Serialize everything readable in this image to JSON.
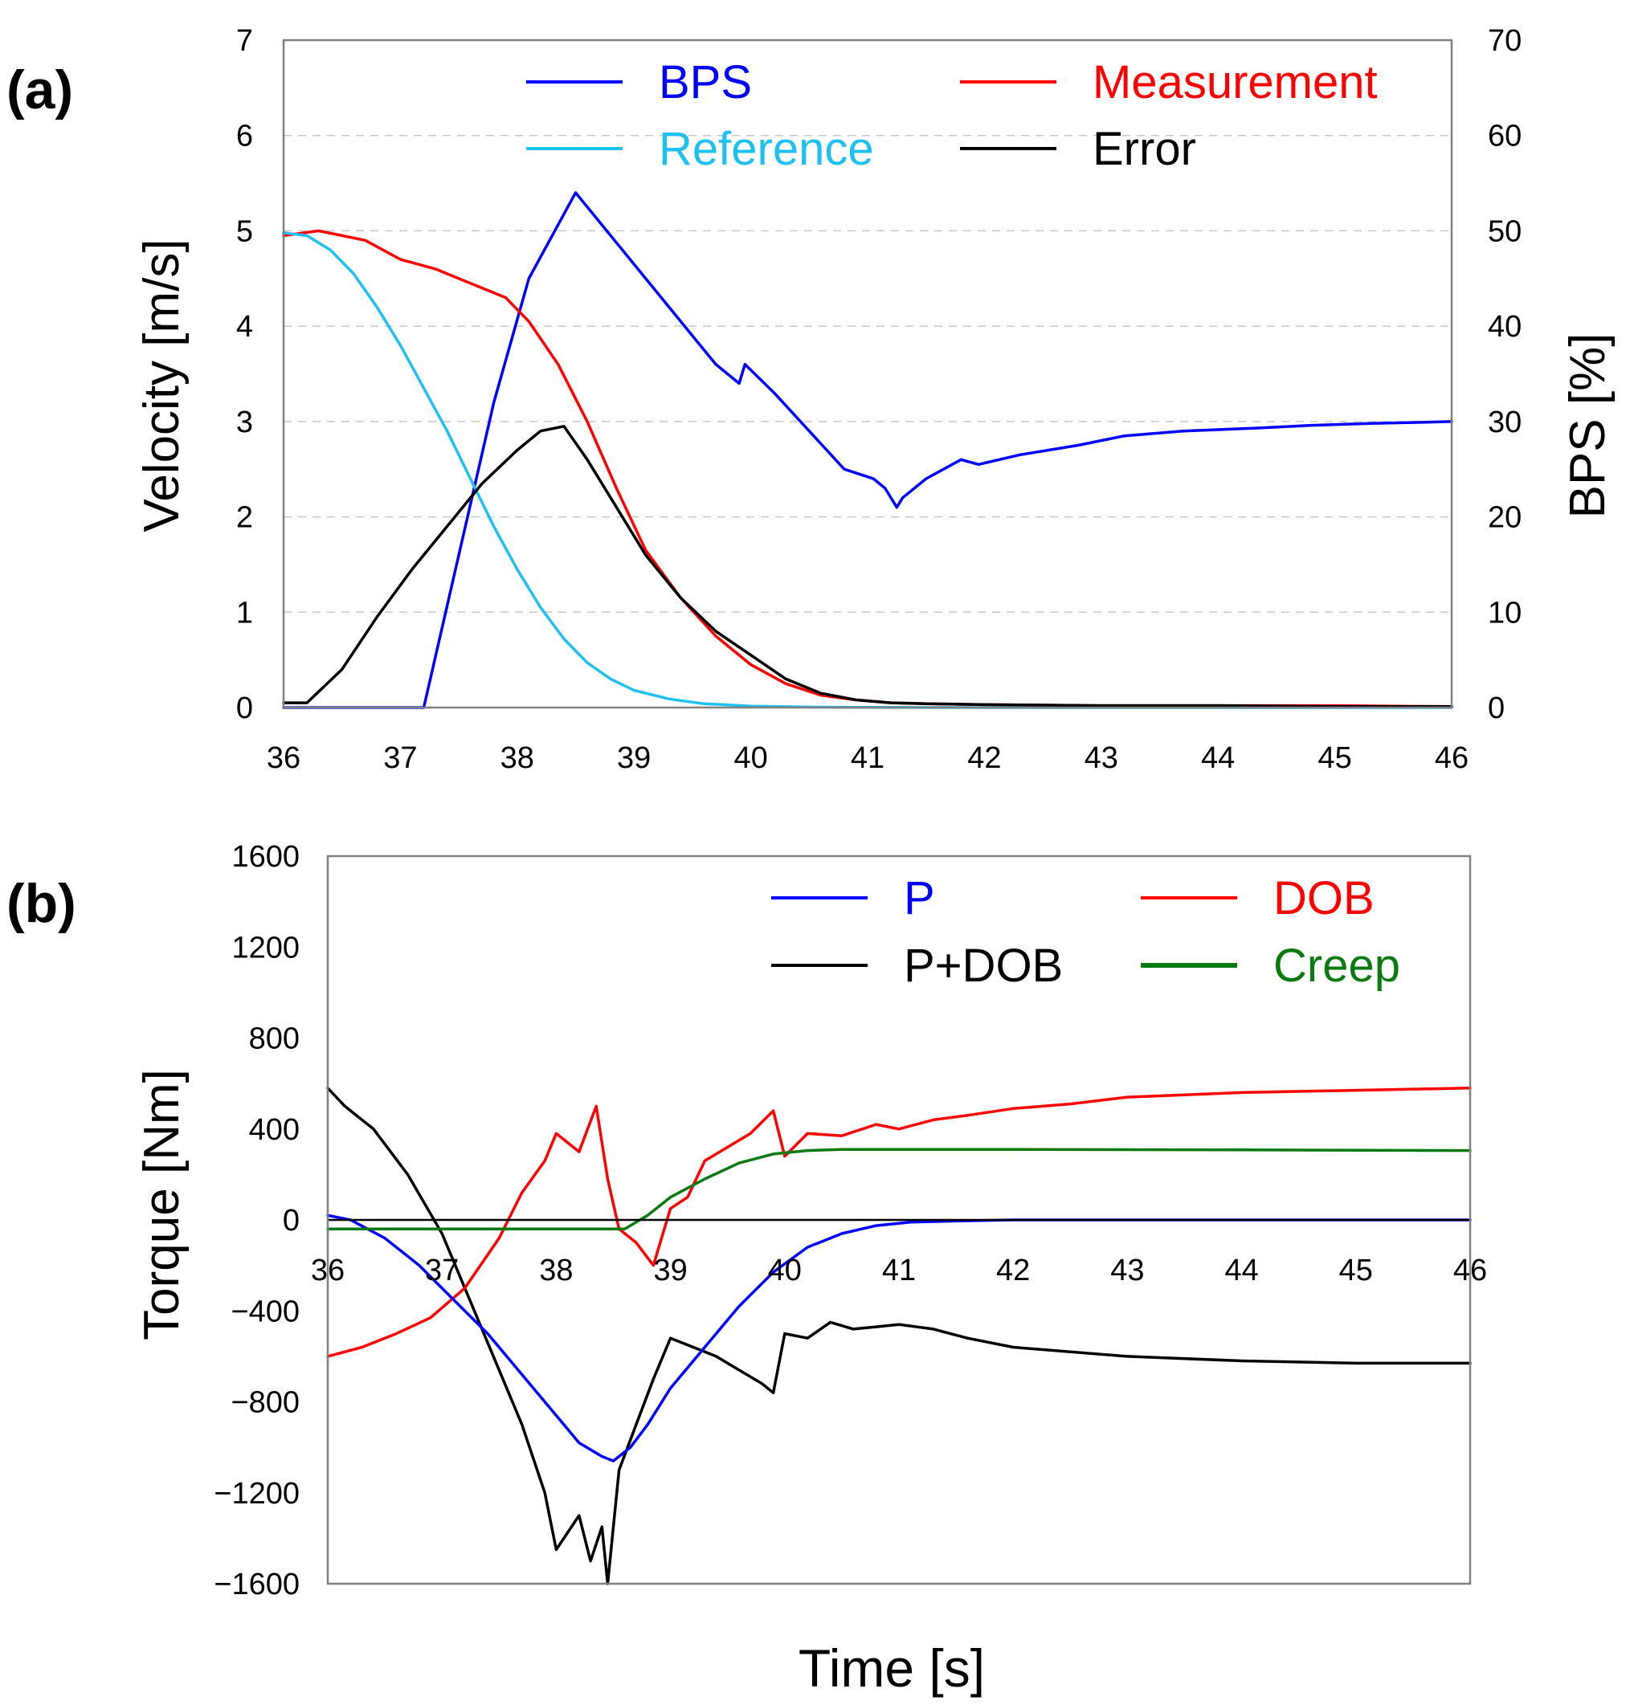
{
  "figure": {
    "xlabel": "Time  [s]"
  },
  "chart_data": [
    {
      "panel_label": "(a)",
      "type": "line",
      "ylabel": "Velocity  [m/s]",
      "y2label": "BPS  [%]",
      "xlim": [
        36,
        46
      ],
      "ylim": [
        0,
        7
      ],
      "y2lim": [
        0,
        70
      ],
      "xticks": [
        "36",
        "37",
        "38",
        "39",
        "40",
        "41",
        "42",
        "43",
        "44",
        "45",
        "46"
      ],
      "yticks": [
        "0",
        "1",
        "2",
        "3",
        "4",
        "5",
        "6",
        "7"
      ],
      "y2ticks": [
        "0",
        "10",
        "20",
        "30",
        "40",
        "50",
        "60",
        "70"
      ],
      "grid": "horizontal dashed",
      "legend_position": "top",
      "series": [
        {
          "name": "BPS",
          "color": "#0000ff",
          "axis": "right",
          "legend_slot": 0,
          "x": [
            36,
            37.2,
            37.5,
            37.8,
            38.1,
            38.5,
            38.9,
            39.3,
            39.7,
            39.9,
            39.95,
            40.2,
            40.5,
            40.8,
            41.05,
            41.15,
            41.25,
            41.3,
            41.5,
            41.8,
            41.95,
            42.3,
            42.8,
            43.2,
            43.7,
            44.3,
            44.8,
            45.3,
            45.7,
            46
          ],
          "y": [
            0,
            0,
            16,
            32,
            45,
            54,
            48,
            42,
            36,
            34,
            36,
            33,
            29,
            25,
            24,
            23,
            21,
            22,
            24,
            26,
            25.5,
            26.5,
            27.5,
            28.5,
            29,
            29.3,
            29.6,
            29.8,
            29.9,
            30
          ]
        },
        {
          "name": "Measurement",
          "color": "#ff0000",
          "axis": "left",
          "legend_slot": 1,
          "x": [
            36,
            36.3,
            36.7,
            37.0,
            37.3,
            37.6,
            37.9,
            38.1,
            38.35,
            38.6,
            38.85,
            39.1,
            39.4,
            39.7,
            40.0,
            40.3,
            40.6,
            40.9,
            41.2,
            41.5,
            42.0,
            43.0,
            44.0,
            45.0,
            46.0
          ],
          "y": [
            4.95,
            5.0,
            4.9,
            4.7,
            4.6,
            4.45,
            4.3,
            4.05,
            3.6,
            3.0,
            2.3,
            1.65,
            1.15,
            0.75,
            0.45,
            0.25,
            0.13,
            0.08,
            0.05,
            0.04,
            0.03,
            0.02,
            0.02,
            0.02,
            0.01
          ]
        },
        {
          "name": "Reference",
          "color": "#1ec0f0",
          "axis": "left",
          "legend_slot": 2,
          "x": [
            36,
            36.2,
            36.4,
            36.6,
            36.8,
            37.0,
            37.2,
            37.4,
            37.6,
            37.8,
            38.0,
            38.2,
            38.4,
            38.6,
            38.8,
            39.0,
            39.3,
            39.6,
            40.0,
            40.5,
            41.0,
            42.0,
            43.0,
            46.0
          ],
          "y": [
            4.98,
            4.95,
            4.8,
            4.55,
            4.2,
            3.8,
            3.35,
            2.9,
            2.4,
            1.9,
            1.45,
            1.05,
            0.72,
            0.47,
            0.3,
            0.18,
            0.09,
            0.04,
            0.015,
            0.005,
            0.002,
            0,
            0,
            0
          ]
        },
        {
          "name": "Error",
          "color": "#000000",
          "axis": "left",
          "legend_slot": 3,
          "x": [
            36,
            36.2,
            36.5,
            36.8,
            37.1,
            37.4,
            37.7,
            38.0,
            38.2,
            38.4,
            38.6,
            38.85,
            39.1,
            39.4,
            39.7,
            40.0,
            40.3,
            40.6,
            40.9,
            41.2,
            41.5,
            42.0,
            43.0,
            44.0,
            45.0,
            46.0
          ],
          "y": [
            0.05,
            0.05,
            0.4,
            0.95,
            1.45,
            1.9,
            2.35,
            2.7,
            2.9,
            2.95,
            2.6,
            2.1,
            1.6,
            1.15,
            0.8,
            0.55,
            0.3,
            0.15,
            0.08,
            0.05,
            0.04,
            0.03,
            0.02,
            0.02,
            0.01,
            0.01
          ]
        }
      ]
    },
    {
      "panel_label": "(b)",
      "type": "line",
      "ylabel": "Torque  [Nm]",
      "xlim": [
        36,
        46
      ],
      "ylim": [
        -1600,
        1600
      ],
      "xticks": [
        "36",
        "37",
        "38",
        "39",
        "40",
        "41",
        "42",
        "43",
        "44",
        "45",
        "46"
      ],
      "yticks": [
        "−1600",
        "−1200",
        "−800",
        "−400",
        "0",
        "400",
        "800",
        "1200",
        "1600"
      ],
      "grid": "none",
      "legend_position": "top",
      "series": [
        {
          "name": "P",
          "color": "#0000ff",
          "legend_slot": 0,
          "x": [
            36,
            36.2,
            36.5,
            36.8,
            37.1,
            37.4,
            37.7,
            38.0,
            38.2,
            38.4,
            38.5,
            38.65,
            38.8,
            39.0,
            39.3,
            39.6,
            39.9,
            40.2,
            40.5,
            40.8,
            41.1,
            41.5,
            42.0,
            43.0,
            44.0,
            46.0
          ],
          "y": [
            20,
            0,
            -80,
            -200,
            -350,
            -500,
            -680,
            -860,
            -980,
            -1040,
            -1060,
            -1000,
            -900,
            -740,
            -560,
            -380,
            -230,
            -120,
            -60,
            -25,
            -10,
            -5,
            0,
            0,
            0,
            0
          ]
        },
        {
          "name": "DOB",
          "color": "#ff0000",
          "legend_slot": 1,
          "x": [
            36,
            36.3,
            36.6,
            36.9,
            37.2,
            37.5,
            37.7,
            37.9,
            38.0,
            38.2,
            38.35,
            38.45,
            38.55,
            38.7,
            38.85,
            39.0,
            39.15,
            39.3,
            39.5,
            39.7,
            39.9,
            40.0,
            40.2,
            40.5,
            40.8,
            41.0,
            41.3,
            41.6,
            42.0,
            42.5,
            43.0,
            44.0,
            45.0,
            46.0
          ],
          "y": [
            -600,
            -560,
            -500,
            -430,
            -300,
            -80,
            120,
            260,
            380,
            300,
            500,
            180,
            -40,
            -100,
            -200,
            50,
            100,
            260,
            320,
            380,
            480,
            280,
            380,
            370,
            420,
            400,
            440,
            460,
            490,
            510,
            540,
            560,
            570,
            580
          ]
        },
        {
          "name": "P+DOB",
          "color": "#000000",
          "legend_slot": 2,
          "x": [
            36,
            36.15,
            36.4,
            36.7,
            37.0,
            37.2,
            37.45,
            37.7,
            37.9,
            38.0,
            38.2,
            38.3,
            38.4,
            38.45,
            38.55,
            38.7,
            38.85,
            39.0,
            39.2,
            39.4,
            39.6,
            39.8,
            39.9,
            40.0,
            40.2,
            40.4,
            40.6,
            40.8,
            41.0,
            41.3,
            41.6,
            42.0,
            43.0,
            44.0,
            45.0,
            46.0
          ],
          "y": [
            580,
            500,
            400,
            200,
            -60,
            -300,
            -600,
            -900,
            -1200,
            -1450,
            -1300,
            -1500,
            -1350,
            -1600,
            -1100,
            -900,
            -700,
            -520,
            -560,
            -600,
            -660,
            -720,
            -760,
            -500,
            -520,
            -450,
            -480,
            -470,
            -460,
            -480,
            -520,
            -560,
            -600,
            -620,
            -630,
            -630
          ]
        },
        {
          "name": "Creep",
          "color": "#0a7a10",
          "legend_slot": 3,
          "x": [
            36,
            37.0,
            38.0,
            38.5,
            38.6,
            38.8,
            39.0,
            39.3,
            39.6,
            39.9,
            40.2,
            40.5,
            41.0,
            42.0,
            44.0,
            46.0
          ],
          "y": [
            -40,
            -40,
            -40,
            -40,
            -40,
            20,
            100,
            180,
            250,
            290,
            305,
            310,
            310,
            310,
            308,
            305
          ]
        }
      ]
    }
  ]
}
